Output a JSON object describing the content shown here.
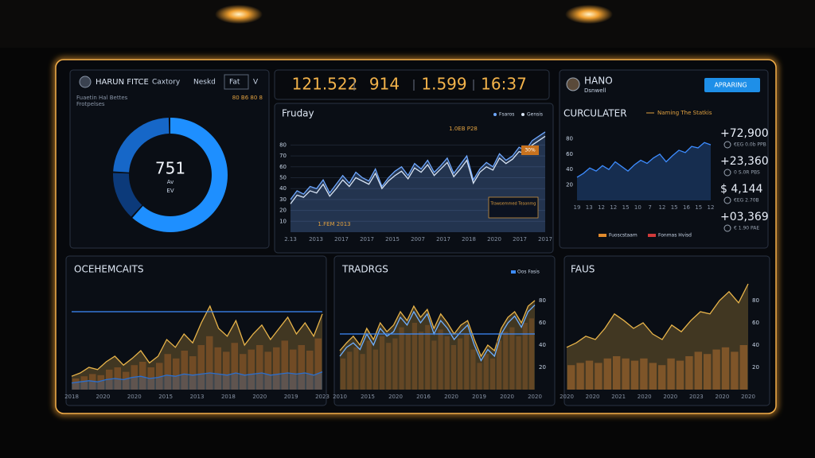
{
  "header": {
    "stats": [
      "121.522",
      "914",
      "1.599",
      "16:37"
    ]
  },
  "left_panel": {
    "title": "HARUN FITCE",
    "tabs": [
      "Caxtory",
      "Neskd",
      "Fat",
      "V"
    ],
    "subtitle": "Fuaetin Hal Bettes",
    "note": "Frotpelses",
    "corner": "80 B6 80 8",
    "donut": {
      "center": "751",
      "lines": [
        "Av",
        "EV"
      ],
      "values": [
        62,
        14,
        24
      ],
      "colors": [
        "#1e8fff",
        "#0c3a7a",
        "#1667c8"
      ]
    }
  },
  "main_chart": {
    "title": "Fruday",
    "ylim": [
      0,
      100
    ],
    "yticks": [
      10,
      20,
      30,
      40,
      50,
      60,
      70,
      80
    ],
    "grid": true,
    "x_labels": [
      "2.13",
      "2013",
      "2017",
      "2017",
      "2015",
      "2007",
      "2017",
      "2018",
      "2020",
      "2017",
      "2017"
    ],
    "annotations": [
      "1.0EB P28",
      "1.FEM 2013",
      "Trawsemmed Tesonmg",
      "30%"
    ],
    "series": [
      {
        "name": "Fsaros",
        "kind": "area",
        "color": "#6fa8ff",
        "values": [
          30,
          38,
          35,
          42,
          40,
          48,
          36,
          44,
          52,
          45,
          55,
          50,
          47,
          58,
          42,
          50,
          56,
          60,
          52,
          63,
          58,
          66,
          55,
          61,
          68,
          54,
          62,
          70,
          48,
          58,
          64,
          60,
          72,
          66,
          70,
          78,
          75,
          84,
          88,
          92
        ]
      },
      {
        "name": "Gensis",
        "kind": "line",
        "color": "#d8e4f4",
        "values": [
          26,
          34,
          32,
          38,
          36,
          44,
          33,
          40,
          48,
          42,
          50,
          47,
          44,
          54,
          40,
          47,
          52,
          56,
          49,
          59,
          55,
          62,
          52,
          58,
          64,
          51,
          58,
          66,
          45,
          55,
          60,
          57,
          68,
          63,
          67,
          74,
          72,
          80,
          84,
          88
        ]
      }
    ]
  },
  "right_panel": {
    "title": "HANO",
    "subtitle": "Dsnwell",
    "button": "APRARING",
    "chart_title": "CURCULATER",
    "chart_legend": "Naming The Statkis",
    "chart": {
      "ylim": [
        0,
        100
      ],
      "yticks": [
        20,
        40,
        60,
        80
      ],
      "grid": false,
      "x_labels": [
        "19",
        "13",
        "12",
        "12",
        "15",
        "10",
        "7",
        "12",
        "15",
        "16",
        "15",
        "12"
      ],
      "series": [
        {
          "kind": "area",
          "color": "#3d8cff",
          "values": [
            30,
            35,
            42,
            38,
            45,
            40,
            50,
            44,
            38,
            46,
            52,
            48,
            55,
            60,
            50,
            58,
            65,
            62,
            70,
            68,
            75,
            72
          ]
        }
      ]
    },
    "legend": [
      {
        "text": "Fuoscstaam",
        "color": "#e08a2c"
      },
      {
        "text": "Fonmas Hvisd",
        "color": "#d03a3a"
      }
    ],
    "stats": [
      {
        "value": "+72,900",
        "sub": "€EG 0.0b PPB"
      },
      {
        "value": "+23,360",
        "sub": "0 S.0R PBS"
      },
      {
        "value": "$ 4,144",
        "sub": "€EG 2.70B"
      },
      {
        "value": "+03,369",
        "sub": "€ 1.90 PAE"
      }
    ]
  },
  "bottom": [
    {
      "title": "OCEHEMCAITS",
      "ylim": [
        0,
        100
      ],
      "reference": 70,
      "x_labels": [
        "2018",
        "2020",
        "2020",
        "2015",
        "2013",
        "2018",
        "2020",
        "2019",
        "2023"
      ],
      "series": [
        {
          "kind": "area",
          "color": "#e8b44a",
          "values": [
            12,
            15,
            20,
            18,
            25,
            30,
            22,
            28,
            35,
            24,
            30,
            45,
            38,
            50,
            42,
            60,
            75,
            55,
            48,
            62,
            40,
            50,
            58,
            45,
            55,
            65,
            50,
            60,
            48,
            68
          ]
        },
        {
          "kind": "bar",
          "color": "#7a4f26",
          "values": [
            10,
            12,
            14,
            13,
            18,
            20,
            16,
            22,
            25,
            20,
            24,
            32,
            28,
            35,
            30,
            40,
            48,
            38,
            34,
            42,
            32,
            36,
            40,
            34,
            38,
            44,
            36,
            40,
            35,
            46
          ]
        },
        {
          "kind": "area",
          "color": "#2a6fd0",
          "values": [
            6,
            7,
            8,
            7,
            9,
            10,
            9,
            11,
            12,
            10,
            11,
            13,
            12,
            14,
            13,
            14,
            15,
            14,
            13,
            15,
            13,
            14,
            15,
            13,
            14,
            15,
            14,
            15,
            13,
            16
          ]
        }
      ]
    },
    {
      "title": "TRADRGS",
      "ylim": [
        0,
        100
      ],
      "reference": 50,
      "yaxis_side": "right",
      "yticks": [
        20,
        40,
        60,
        80
      ],
      "x_labels": [
        "2010",
        "2015",
        "2020",
        "2016",
        "2020",
        "2019",
        "2020",
        "2020"
      ],
      "series": [
        {
          "name": "Oos Fasis",
          "kind": "area",
          "color": "#e8b44a",
          "values": [
            35,
            42,
            48,
            40,
            55,
            45,
            60,
            52,
            58,
            70,
            62,
            75,
            65,
            72,
            55,
            68,
            60,
            50,
            58,
            62,
            45,
            30,
            40,
            35,
            55,
            65,
            70,
            60,
            75,
            80
          ]
        },
        {
          "kind": "bar",
          "color": "#6b4a26",
          "values": [
            28,
            34,
            38,
            32,
            44,
            36,
            48,
            42,
            46,
            56,
            50,
            60,
            52,
            58,
            44,
            54,
            48,
            40,
            46,
            50,
            36,
            24,
            32,
            28,
            44,
            52,
            56,
            48,
            60,
            64
          ]
        },
        {
          "kind": "line",
          "color": "#6fb0ff",
          "values": [
            30,
            38,
            42,
            36,
            50,
            40,
            55,
            48,
            52,
            65,
            58,
            70,
            60,
            68,
            50,
            62,
            55,
            45,
            52,
            58,
            40,
            26,
            36,
            30,
            50,
            60,
            66,
            56,
            70,
            76
          ]
        }
      ]
    },
    {
      "title": "FAUS",
      "ylim": [
        0,
        100
      ],
      "yaxis_side": "right",
      "yticks": [
        20,
        40,
        60,
        80
      ],
      "x_labels": [
        "2020",
        "2020",
        "2021",
        "2020",
        "2020",
        "2023",
        "2020",
        "2020"
      ],
      "series": [
        {
          "kind": "area",
          "color": "#e8b44a",
          "values": [
            38,
            42,
            48,
            45,
            55,
            68,
            62,
            55,
            60,
            50,
            45,
            58,
            52,
            62,
            70,
            68,
            80,
            88,
            78,
            95
          ]
        },
        {
          "kind": "bar",
          "color": "#8a5a2a",
          "values": [
            22,
            24,
            26,
            24,
            28,
            30,
            28,
            26,
            28,
            24,
            22,
            28,
            26,
            30,
            34,
            32,
            36,
            38,
            34,
            40
          ]
        }
      ]
    }
  ]
}
